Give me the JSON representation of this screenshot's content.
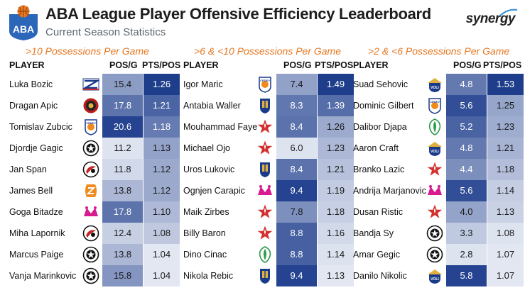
{
  "header": {
    "title": "ABA League Player Offensive Efficiency Leaderboard",
    "subtitle": "Current Season Statistics",
    "logo_text": "ABA",
    "brand": "synergy"
  },
  "colors": {
    "accent": "#e87722",
    "navy": "#1a3a8a",
    "logo_blue": "#2c66b8",
    "logo_orange": "#e87722"
  },
  "columns": {
    "player": "PLAYER",
    "pos_g": "POS/G",
    "pts_pos": "PTS/POS"
  },
  "sections": [
    {
      "title": ">10 Possessions Per Game",
      "rows": [
        {
          "player": "Luka Bozic",
          "team_icon": "zadar-logo-icon",
          "pos_g": "15.4",
          "pts_pos": "1.26"
        },
        {
          "player": "Dragan Apic",
          "team_icon": "mornar-logo-icon",
          "pos_g": "17.8",
          "pts_pos": "1.21"
        },
        {
          "player": "Tomislav Zubcic",
          "team_icon": "cedevita-logo-icon",
          "pos_g": "20.6",
          "pts_pos": "1.18"
        },
        {
          "player": "Djordje Gagic",
          "team_icon": "partizan-logo-icon",
          "pos_g": "11.2",
          "pts_pos": "1.13"
        },
        {
          "player": "Jan Span",
          "team_icon": "olimpija-logo-icon",
          "pos_g": "11.8",
          "pts_pos": "1.12"
        },
        {
          "player": "James Bell",
          "team_icon": "zagreb-logo-icon",
          "pos_g": "13.8",
          "pts_pos": "1.12"
        },
        {
          "player": "Goga Bitadze",
          "team_icon": "mega-logo-icon",
          "pos_g": "17.8",
          "pts_pos": "1.10"
        },
        {
          "player": "Miha Lapornik",
          "team_icon": "olimpija-logo-icon",
          "pos_g": "12.4",
          "pts_pos": "1.08"
        },
        {
          "player": "Marcus Paige",
          "team_icon": "partizan-logo-icon",
          "pos_g": "13.8",
          "pts_pos": "1.04"
        },
        {
          "player": "Vanja Marinkovic",
          "team_icon": "partizan-logo-icon",
          "pos_g": "15.8",
          "pts_pos": "1.04"
        }
      ]
    },
    {
      "title": ">6 & <10 Possessions Per Game",
      "rows": [
        {
          "player": "Igor Maric",
          "team_icon": "cedevita-logo-icon",
          "pos_g": "7.4",
          "pts_pos": "1.49"
        },
        {
          "player": "Antabia Waller",
          "team_icon": "buducnost-logo-icon",
          "pos_g": "8.3",
          "pts_pos": "1.39"
        },
        {
          "player": "Mouhammad Faye",
          "team_icon": "crvena-zvezda-logo-icon",
          "pos_g": "8.4",
          "pts_pos": "1.26"
        },
        {
          "player": "Michael Ojo",
          "team_icon": "crvena-zvezda-logo-icon",
          "pos_g": "6.0",
          "pts_pos": "1.23"
        },
        {
          "player": "Uros Lukovic",
          "team_icon": "buducnost-logo-icon",
          "pos_g": "8.4",
          "pts_pos": "1.21"
        },
        {
          "player": "Ognjen Carapic",
          "team_icon": "mega-logo-icon",
          "pos_g": "9.4",
          "pts_pos": "1.19"
        },
        {
          "player": "Maik Zirbes",
          "team_icon": "crvena-zvezda-logo-icon",
          "pos_g": "7.8",
          "pts_pos": "1.18"
        },
        {
          "player": "Billy Baron",
          "team_icon": "crvena-zvezda-logo-icon",
          "pos_g": "8.8",
          "pts_pos": "1.16"
        },
        {
          "player": "Dino Cinac",
          "team_icon": "krka-logo-icon",
          "pos_g": "8.8",
          "pts_pos": "1.14"
        },
        {
          "player": "Nikola Rebic",
          "team_icon": "buducnost-logo-icon",
          "pos_g": "9.4",
          "pts_pos": "1.13"
        }
      ]
    },
    {
      "title": ">2 & <6 Possessions Per Game",
      "rows": [
        {
          "player": "Suad Sehovic",
          "team_icon": "buducnost-voli-logo-icon",
          "pos_g": "4.8",
          "pts_pos": "1.53"
        },
        {
          "player": "Dominic Gilbert",
          "team_icon": "cedevita-logo-icon",
          "pos_g": "5.6",
          "pts_pos": "1.25"
        },
        {
          "player": "Dalibor Djapa",
          "team_icon": "krka-logo-icon",
          "pos_g": "5.2",
          "pts_pos": "1.23"
        },
        {
          "player": "Aaron Craft",
          "team_icon": "buducnost-voli-logo-icon",
          "pos_g": "4.8",
          "pts_pos": "1.21"
        },
        {
          "player": "Branko Lazic",
          "team_icon": "crvena-zvezda-logo-icon",
          "pos_g": "4.4",
          "pts_pos": "1.18"
        },
        {
          "player": "Andrija Marjanovic",
          "team_icon": "mega-logo-icon",
          "pos_g": "5.6",
          "pts_pos": "1.14"
        },
        {
          "player": "Dusan Ristic",
          "team_icon": "crvena-zvezda-logo-icon",
          "pos_g": "4.0",
          "pts_pos": "1.13"
        },
        {
          "player": "Bandja Sy",
          "team_icon": "partizan-logo-icon",
          "pos_g": "3.3",
          "pts_pos": "1.08"
        },
        {
          "player": "Amar Gegic",
          "team_icon": "partizan-logo-icon",
          "pos_g": "2.8",
          "pts_pos": "1.07"
        },
        {
          "player": "Danilo Nikolic",
          "team_icon": "buducnost-voli-logo-icon",
          "pos_g": "5.8",
          "pts_pos": "1.07"
        }
      ]
    }
  ]
}
